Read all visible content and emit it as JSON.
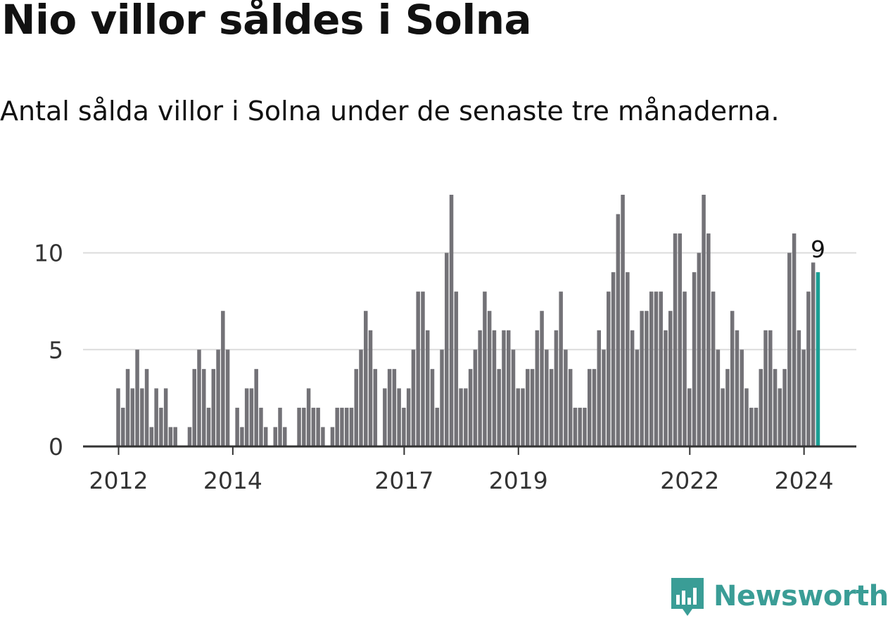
{
  "title": "Nio villor såldes i Solna",
  "subtitle": "Antal sålda villor i Solna under de senaste tre månaderna.",
  "brand": {
    "name": "Newsworthy",
    "icon": "newsworthy-logo-icon",
    "color": "#3a9d96"
  },
  "colors": {
    "bar": "#737277",
    "highlight": "#1a9e94",
    "grid": "#dcdcdc",
    "axis": "#333333"
  },
  "chart_data": {
    "type": "bar",
    "title": "Nio villor såldes i Solna",
    "xlabel": "",
    "ylabel": "",
    "ylim": [
      0,
      13
    ],
    "yticks": [
      0,
      5,
      10
    ],
    "xticks": [
      "2012",
      "2014",
      "2017",
      "2019",
      "2022",
      "2024"
    ],
    "start": "2012-01",
    "highlight_label": "9",
    "values": [
      3,
      2,
      4,
      3,
      5,
      3,
      4,
      1,
      3,
      2,
      3,
      1,
      1,
      0,
      0,
      1,
      4,
      5,
      4,
      2,
      4,
      5,
      7,
      5,
      0,
      2,
      1,
      3,
      3,
      4,
      2,
      1,
      0,
      1,
      2,
      1,
      0,
      0,
      2,
      2,
      3,
      2,
      2,
      1,
      0,
      1,
      2,
      2,
      2,
      2,
      4,
      5,
      7,
      6,
      4,
      0,
      3,
      4,
      4,
      3,
      2,
      3,
      5,
      8,
      8,
      6,
      4,
      2,
      5,
      10,
      13,
      8,
      3,
      3,
      4,
      5,
      6,
      8,
      7,
      6,
      4,
      6,
      6,
      5,
      3,
      3,
      4,
      4,
      6,
      7,
      5,
      4,
      6,
      8,
      5,
      4,
      2,
      2,
      2,
      4,
      4,
      6,
      5,
      8,
      9,
      12,
      13,
      9,
      6,
      5,
      7,
      7,
      8,
      8,
      8,
      6,
      7,
      11,
      11,
      8,
      3,
      9,
      10,
      13,
      11,
      8,
      5,
      3,
      4,
      7,
      6,
      5,
      3,
      2,
      2,
      4,
      6,
      6,
      4,
      3,
      4,
      10,
      11,
      6,
      5,
      8,
      9.5,
      9
    ]
  }
}
